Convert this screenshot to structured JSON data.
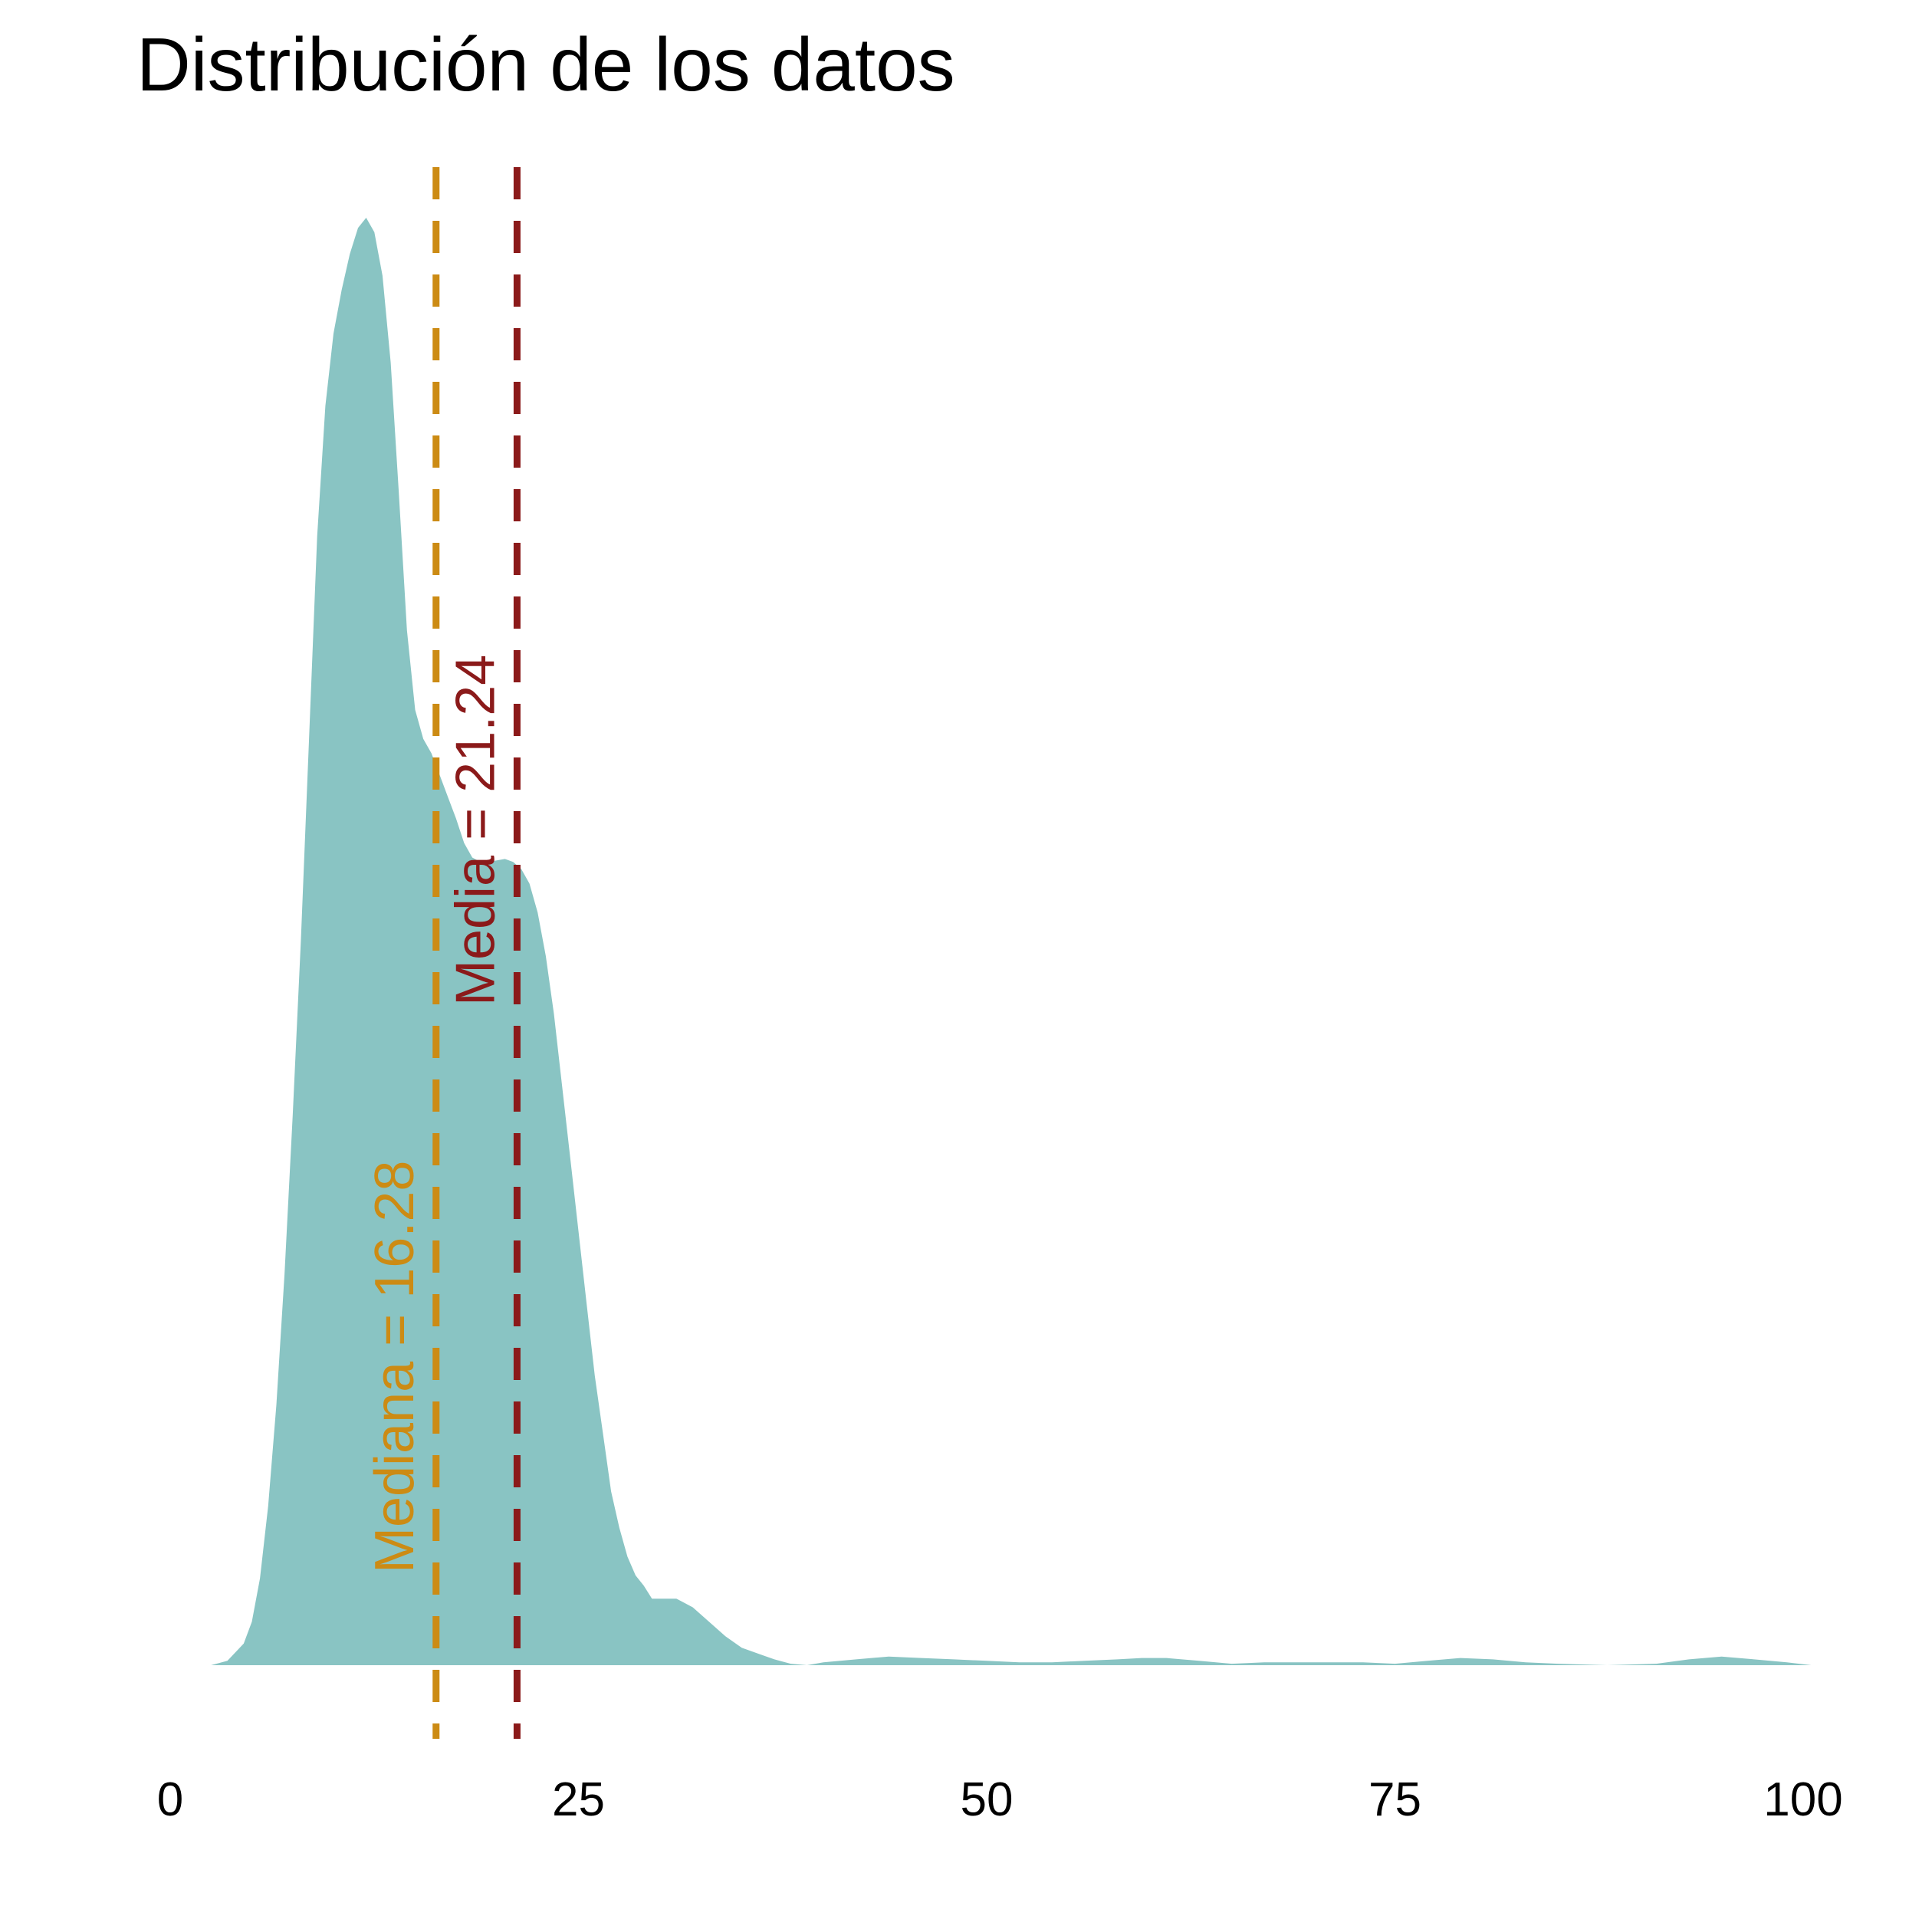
{
  "chart_data": {
    "type": "area",
    "title": "Distribución de los datos",
    "xlabel": "",
    "ylabel": "",
    "xlim": [
      0,
      100
    ],
    "x_ticks": [
      0,
      25,
      50,
      75,
      100
    ],
    "x_tick_labels": [
      "0",
      "25",
      "50",
      "75",
      "100"
    ],
    "grid": false,
    "legend": "none",
    "fill_color": "#89C4C3",
    "series": [
      {
        "x": [
          2.5,
          3.5,
          4.5,
          5.0,
          5.5,
          6.0,
          6.5,
          7.0,
          7.5,
          8.0,
          8.5,
          9.0,
          9.5,
          10.0,
          10.5,
          11.0,
          11.5,
          12.0,
          12.5,
          13.0,
          13.5,
          14.0,
          14.5,
          15.0,
          15.5,
          16.0,
          16.5,
          17.0,
          17.5,
          18.0,
          18.5,
          19.0,
          19.5,
          20.0,
          20.5,
          21.0,
          21.5,
          22.0,
          22.5,
          23.0,
          23.5,
          24.0,
          24.5,
          25.0,
          25.5,
          26.0,
          26.5,
          27.0,
          27.5,
          28.0,
          28.5,
          29.0,
          29.5,
          30.0,
          31.0,
          32.0,
          33.0,
          34.0,
          35.0,
          36.0,
          37.0,
          38.0,
          39.0,
          40.0,
          42.0,
          44.0,
          46.0,
          48.0,
          50.0,
          52.0,
          54.0,
          56.0,
          58.0,
          59.5,
          61.0,
          63.0,
          65.0,
          67.0,
          69.0,
          71.0,
          73.0,
          75.0,
          77.0,
          79.0,
          81.0,
          83.0,
          85.0,
          88.0,
          91.0,
          93.0,
          95.0,
          97.0,
          99.0,
          100.5
        ],
        "y": [
          0.0,
          0.003,
          0.015,
          0.03,
          0.06,
          0.11,
          0.18,
          0.27,
          0.38,
          0.5,
          0.64,
          0.78,
          0.87,
          0.92,
          0.95,
          0.975,
          0.993,
          1.0,
          0.99,
          0.96,
          0.9,
          0.81,
          0.715,
          0.66,
          0.64,
          0.63,
          0.615,
          0.6,
          0.585,
          0.568,
          0.558,
          0.555,
          0.555,
          0.556,
          0.557,
          0.555,
          0.55,
          0.54,
          0.52,
          0.49,
          0.45,
          0.4,
          0.35,
          0.3,
          0.25,
          0.2,
          0.16,
          0.12,
          0.095,
          0.075,
          0.062,
          0.055,
          0.046,
          0.046,
          0.046,
          0.04,
          0.03,
          0.02,
          0.012,
          0.008,
          0.004,
          0.001,
          0.0,
          0.002,
          0.004,
          0.006,
          0.005,
          0.004,
          0.003,
          0.002,
          0.002,
          0.003,
          0.004,
          0.005,
          0.005,
          0.003,
          0.001,
          0.002,
          0.002,
          0.002,
          0.002,
          0.001,
          0.003,
          0.005,
          0.004,
          0.002,
          0.001,
          0.0,
          0.001,
          0.004,
          0.006,
          0.004,
          0.002,
          0.0
        ]
      }
    ],
    "reference_lines": [
      {
        "value": 16.28,
        "label": "Mediana = 16.28",
        "color": "#CC8B14"
      },
      {
        "value": 21.24,
        "label": "Media = 21.24",
        "color": "#8B1A1A"
      }
    ]
  }
}
